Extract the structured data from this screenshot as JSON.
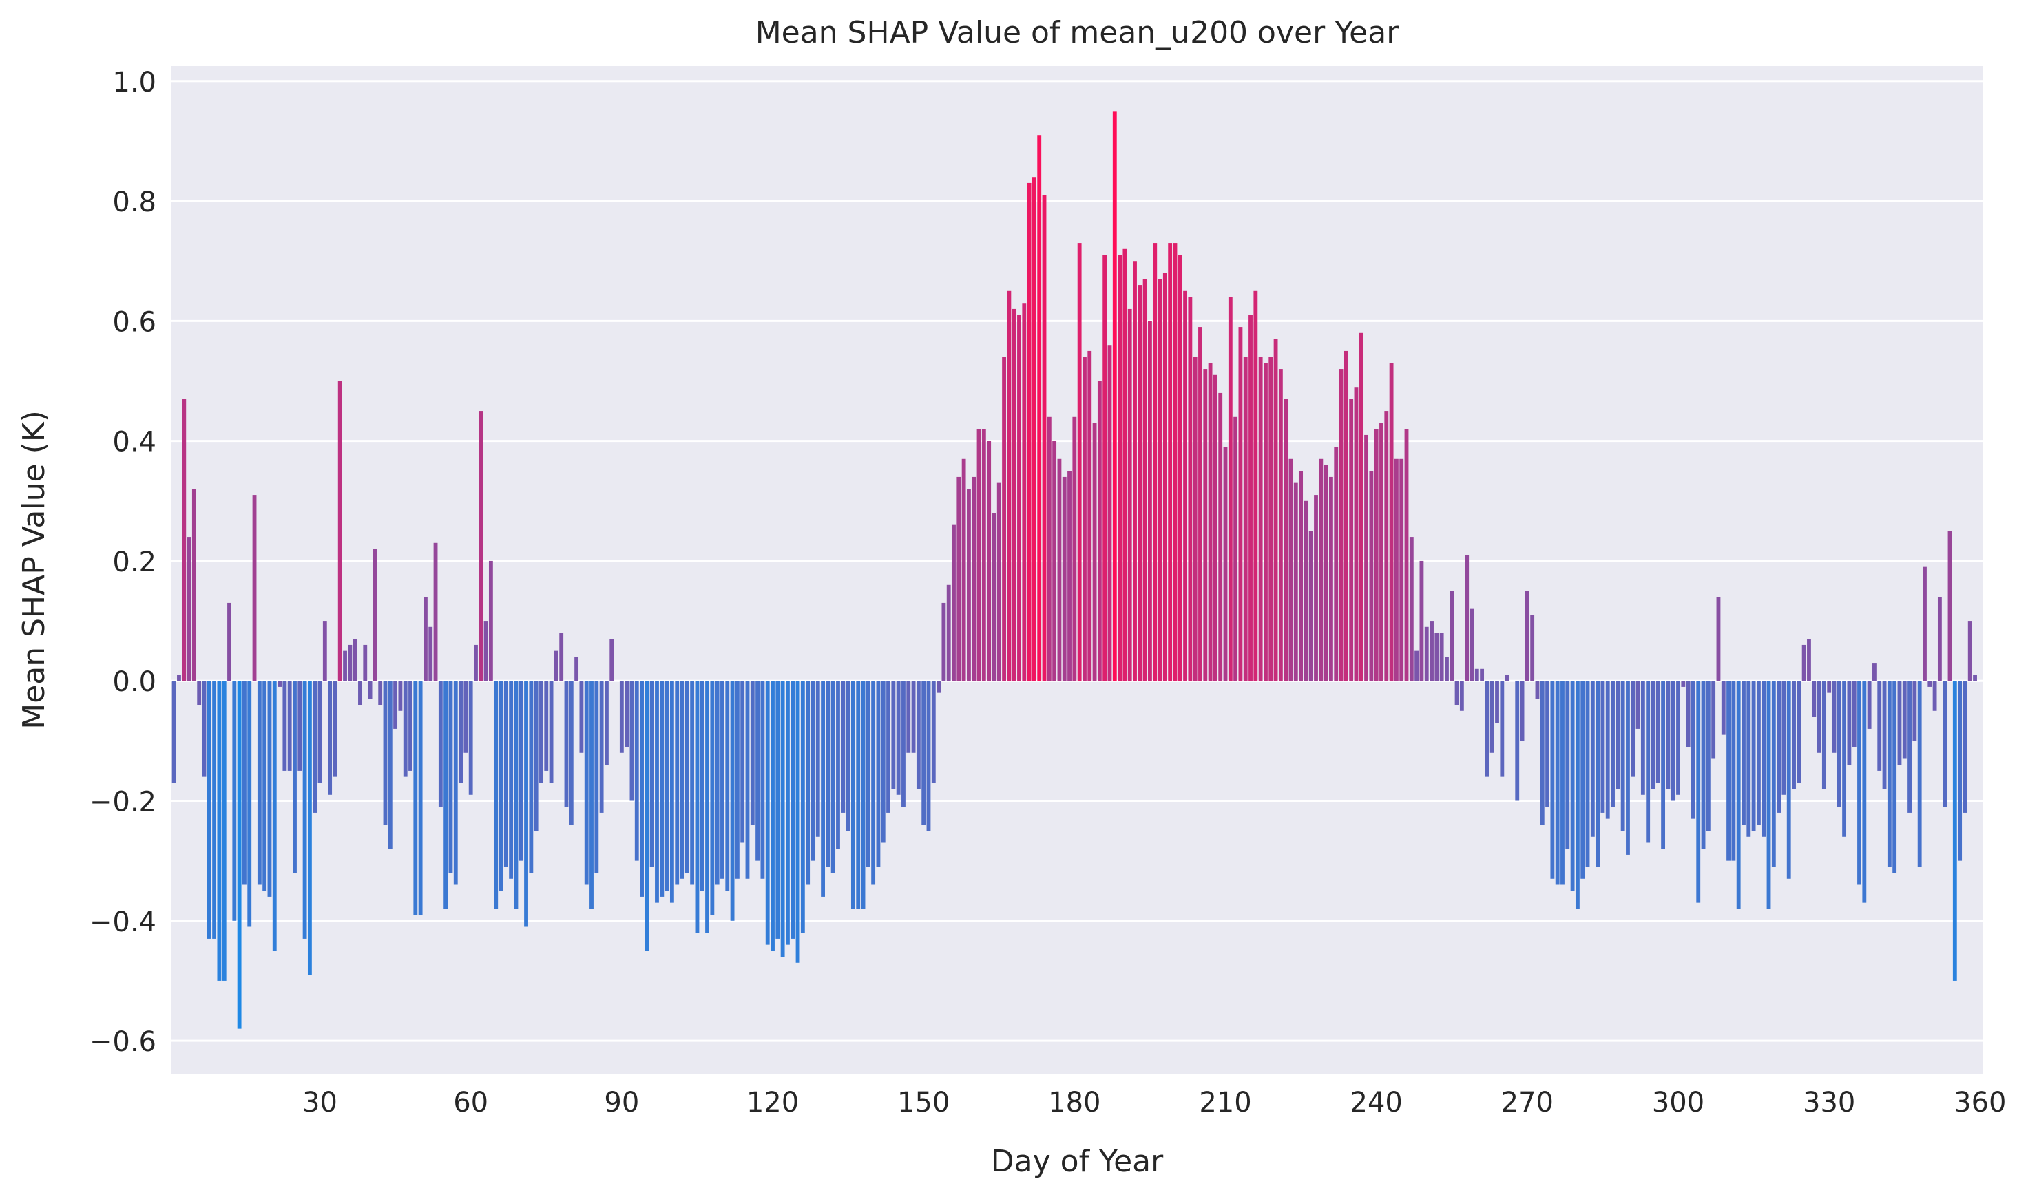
{
  "chart_data": {
    "type": "bar",
    "title": "Mean SHAP Value of mean_u200 over Year",
    "xlabel": "Day of Year",
    "ylabel": "Mean SHAP Value (K)",
    "xlim": [
      0.5,
      360.5
    ],
    "ylim": [
      -0.655,
      1.025
    ],
    "x_ticks": [
      30,
      60,
      90,
      120,
      150,
      180,
      210,
      240,
      270,
      300,
      330,
      360
    ],
    "y_ticks": [
      -0.6,
      -0.4,
      -0.2,
      0.0,
      0.2,
      0.4,
      0.6,
      0.8,
      1.0
    ],
    "y_tick_labels": [
      "−0.6",
      "−0.4",
      "−0.2",
      "0.0",
      "0.2",
      "0.4",
      "0.6",
      "0.8",
      "1.0"
    ],
    "grid": true,
    "colors": {
      "background": "#eaeaf2",
      "grid": "#ffffff",
      "negative": "#1e88e5",
      "positive": "#ff0d57"
    },
    "categories_start_day": 1,
    "values": [
      -0.17,
      0.01,
      0.47,
      0.24,
      0.32,
      -0.04,
      -0.16,
      -0.43,
      -0.43,
      -0.5,
      -0.5,
      0.13,
      -0.4,
      -0.58,
      -0.34,
      -0.41,
      0.31,
      -0.34,
      -0.35,
      -0.36,
      -0.45,
      -0.01,
      -0.15,
      -0.15,
      -0.32,
      -0.15,
      -0.43,
      -0.49,
      -0.22,
      -0.17,
      0.1,
      -0.19,
      -0.16,
      0.5,
      0.05,
      0.06,
      0.07,
      -0.04,
      0.06,
      -0.03,
      0.22,
      -0.04,
      -0.24,
      -0.28,
      -0.08,
      -0.05,
      -0.16,
      -0.15,
      -0.39,
      -0.39,
      0.14,
      0.09,
      0.23,
      -0.21,
      -0.38,
      -0.32,
      -0.34,
      -0.17,
      -0.12,
      -0.19,
      0.06,
      0.45,
      0.1,
      0.2,
      -0.38,
      -0.35,
      -0.31,
      -0.33,
      -0.38,
      -0.3,
      -0.41,
      -0.32,
      -0.25,
      -0.17,
      -0.15,
      -0.17,
      0.05,
      0.08,
      -0.21,
      -0.24,
      0.04,
      -0.12,
      -0.34,
      -0.38,
      -0.32,
      -0.22,
      -0.14,
      0.07,
      0.0,
      -0.12,
      -0.11,
      -0.2,
      -0.3,
      -0.36,
      -0.45,
      -0.31,
      -0.37,
      -0.36,
      -0.35,
      -0.37,
      -0.34,
      -0.33,
      -0.32,
      -0.34,
      -0.42,
      -0.35,
      -0.42,
      -0.39,
      -0.34,
      -0.33,
      -0.35,
      -0.4,
      -0.33,
      -0.27,
      -0.33,
      -0.24,
      -0.3,
      -0.33,
      -0.44,
      -0.45,
      -0.43,
      -0.46,
      -0.44,
      -0.43,
      -0.47,
      -0.42,
      -0.34,
      -0.3,
      -0.26,
      -0.36,
      -0.31,
      -0.32,
      -0.28,
      -0.22,
      -0.25,
      -0.38,
      -0.38,
      -0.38,
      -0.31,
      -0.34,
      -0.31,
      -0.27,
      -0.22,
      -0.18,
      -0.19,
      -0.21,
      -0.12,
      -0.12,
      -0.18,
      -0.24,
      -0.25,
      -0.17,
      -0.02,
      0.13,
      0.16,
      0.26,
      0.34,
      0.37,
      0.32,
      0.34,
      0.42,
      0.42,
      0.4,
      0.28,
      0.33,
      0.54,
      0.65,
      0.62,
      0.61,
      0.63,
      0.83,
      0.84,
      0.91,
      0.81,
      0.44,
      0.4,
      0.37,
      0.34,
      0.35,
      0.44,
      0.73,
      0.54,
      0.55,
      0.43,
      0.5,
      0.71,
      0.56,
      0.95,
      0.71,
      0.72,
      0.62,
      0.7,
      0.66,
      0.67,
      0.6,
      0.73,
      0.67,
      0.68,
      0.73,
      0.73,
      0.71,
      0.65,
      0.64,
      0.54,
      0.59,
      0.52,
      0.53,
      0.51,
      0.48,
      0.39,
      0.64,
      0.44,
      0.59,
      0.54,
      0.61,
      0.65,
      0.54,
      0.53,
      0.54,
      0.57,
      0.52,
      0.47,
      0.37,
      0.33,
      0.35,
      0.3,
      0.25,
      0.31,
      0.37,
      0.36,
      0.34,
      0.39,
      0.52,
      0.55,
      0.47,
      0.49,
      0.58,
      0.41,
      0.35,
      0.42,
      0.43,
      0.45,
      0.53,
      0.37,
      0.37,
      0.42,
      0.24,
      0.05,
      0.2,
      0.09,
      0.1,
      0.08,
      0.08,
      0.04,
      0.15,
      -0.04,
      -0.05,
      0.21,
      0.12,
      0.02,
      0.02,
      -0.16,
      -0.12,
      -0.07,
      -0.16,
      0.01,
      0.0,
      -0.2,
      -0.1,
      0.15,
      0.11,
      -0.03,
      -0.24,
      -0.21,
      -0.33,
      -0.34,
      -0.34,
      -0.28,
      -0.35,
      -0.38,
      -0.33,
      -0.31,
      -0.26,
      -0.31,
      -0.22,
      -0.23,
      -0.21,
      -0.18,
      -0.25,
      -0.29,
      -0.16,
      -0.08,
      -0.19,
      -0.27,
      -0.18,
      -0.17,
      -0.28,
      -0.18,
      -0.2,
      -0.19,
      -0.01,
      -0.11,
      -0.23,
      -0.37,
      -0.28,
      -0.25,
      -0.13,
      0.14,
      -0.09,
      -0.3,
      -0.3,
      -0.38,
      -0.24,
      -0.26,
      -0.25,
      -0.24,
      -0.26,
      -0.38,
      -0.31,
      -0.22,
      -0.19,
      -0.33,
      -0.18,
      -0.17,
      0.06,
      0.07,
      -0.06,
      -0.12,
      -0.18,
      -0.02,
      -0.12,
      -0.21,
      -0.26,
      -0.14,
      -0.11,
      -0.34,
      -0.37,
      -0.08,
      0.03,
      -0.15,
      -0.18,
      -0.31,
      -0.32,
      -0.14,
      -0.13,
      -0.22,
      -0.1,
      -0.31,
      0.19,
      -0.01,
      -0.05,
      0.14,
      -0.21,
      0.25,
      -0.5,
      -0.3,
      -0.22,
      0.1,
      0.01
    ]
  }
}
